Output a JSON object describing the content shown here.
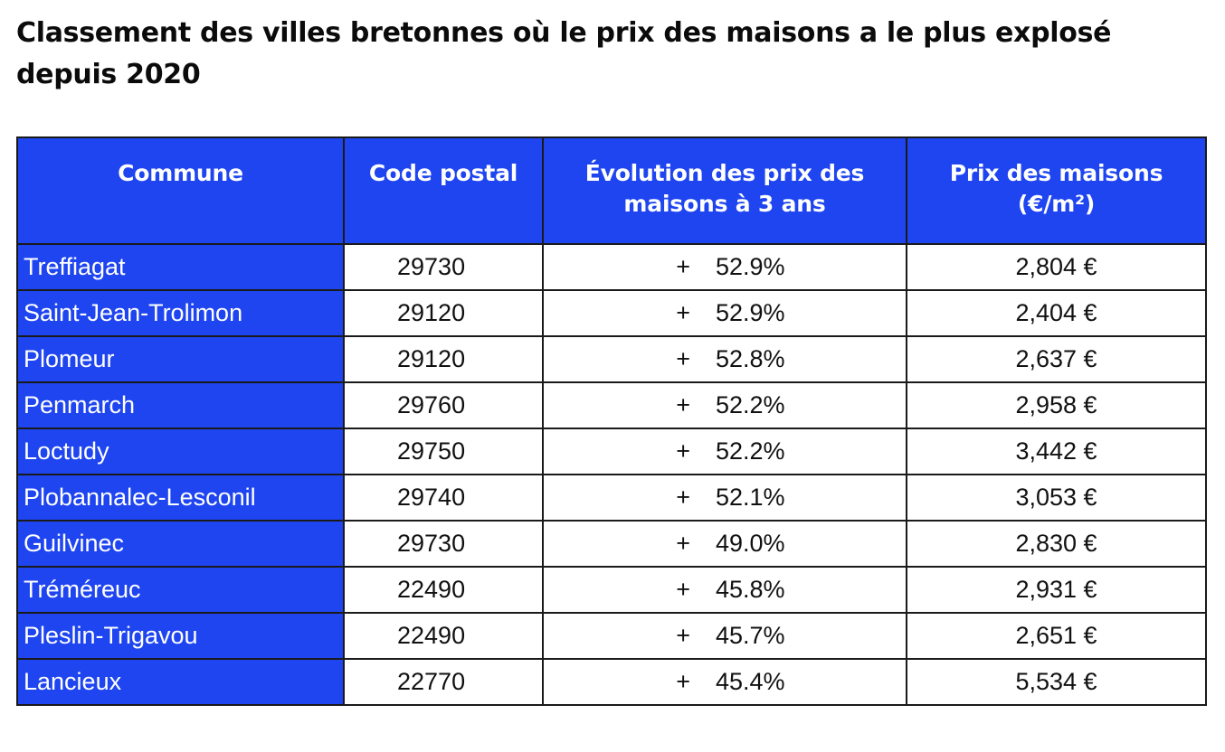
{
  "title": "Classement des villes bretonnes où le prix des maisons a le plus explosé depuis 2020",
  "table": {
    "headers": {
      "commune": "Commune",
      "code": "Code postal",
      "evolution": "Évolution des prix des maisons à 3 ans",
      "price": "Prix des maisons (€/m²)"
    },
    "rows": [
      {
        "commune": "Treffiagat",
        "code": "29730",
        "sign": "+",
        "evolution": "52.9%",
        "price": "2,804 €"
      },
      {
        "commune": "Saint-Jean-Trolimon",
        "code": "29120",
        "sign": "+",
        "evolution": "52.9%",
        "price": "2,404 €"
      },
      {
        "commune": "Plomeur",
        "code": "29120",
        "sign": "+",
        "evolution": "52.8%",
        "price": "2,637 €"
      },
      {
        "commune": "Penmarch",
        "code": "29760",
        "sign": "+",
        "evolution": "52.2%",
        "price": "2,958 €"
      },
      {
        "commune": "Loctudy",
        "code": "29750",
        "sign": "+",
        "evolution": "52.2%",
        "price": "3,442 €"
      },
      {
        "commune": "Plobannalec-Lesconil",
        "code": "29740",
        "sign": "+",
        "evolution": "52.1%",
        "price": "3,053 €"
      },
      {
        "commune": "Guilvinec",
        "code": "29730",
        "sign": "+",
        "evolution": "49.0%",
        "price": "2,830 €"
      },
      {
        "commune": "Tréméreuc",
        "code": "22490",
        "sign": "+",
        "evolution": "45.8%",
        "price": "2,931 €"
      },
      {
        "commune": "Pleslin-Trigavou",
        "code": "22490",
        "sign": "+",
        "evolution": "45.7%",
        "price": "2,651 €"
      },
      {
        "commune": "Lancieux",
        "code": "22770",
        "sign": "+",
        "evolution": "45.4%",
        "price": "5,534 €"
      }
    ]
  },
  "colors": {
    "header_background": "#1e45f0",
    "commune_column_background": "#1e45f0",
    "header_text": "#ffffff",
    "border": "#1a1a1a"
  }
}
